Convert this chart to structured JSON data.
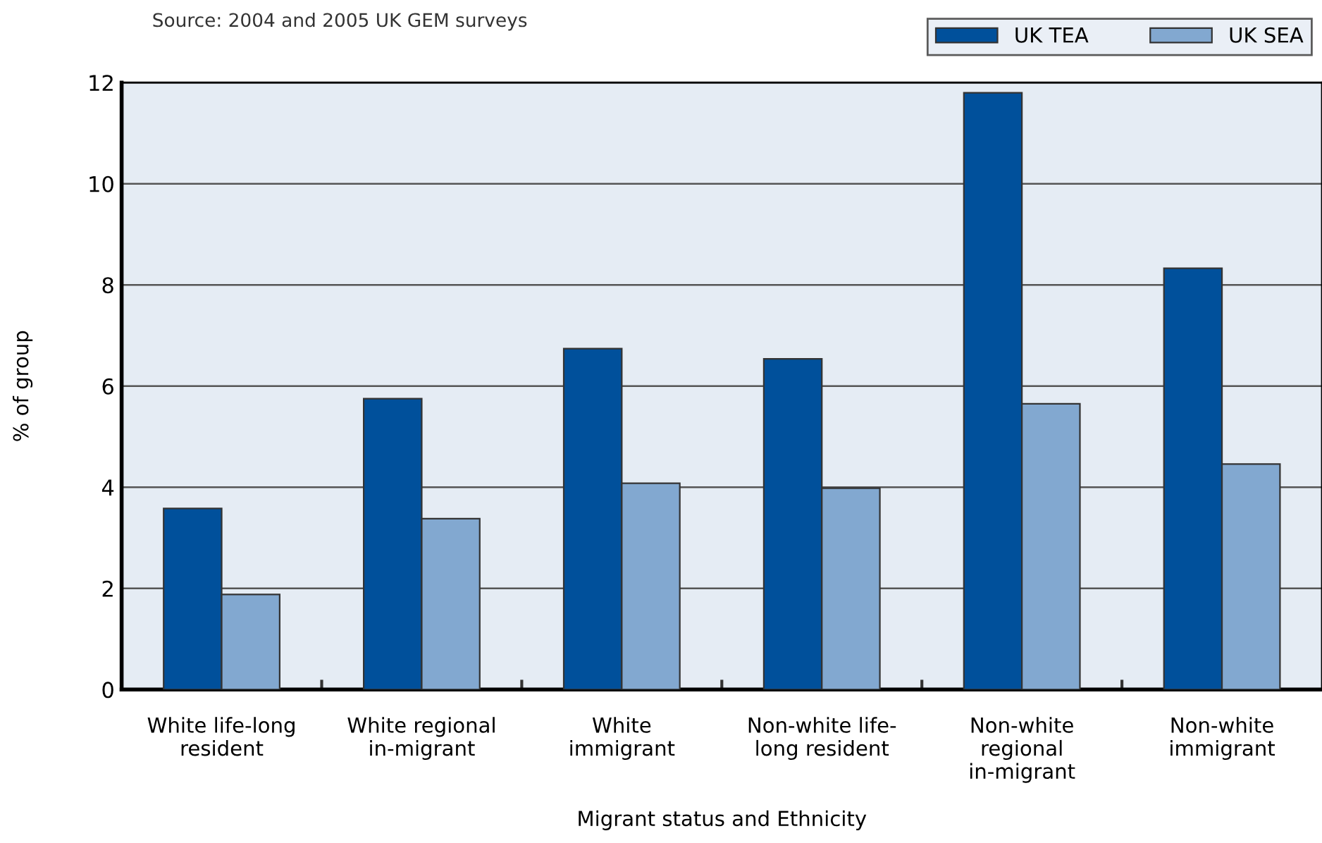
{
  "chart_data": {
    "type": "bar",
    "xlabel": "Migrant status and Ethnicity",
    "ylabel": "% of group",
    "annotations": [
      "Source: 2004 and 2005 UK GEM surveys"
    ],
    "categories": [
      "White life-long\nresident",
      "White regional\nin-migrant",
      "White\nimmigrant",
      "Non-white life-\nlong resident",
      "Non-white\nregional\nin-migrant",
      "Non-white\nimmigrant"
    ],
    "series": [
      {
        "name": "UK TEA",
        "color": "#00509b",
        "values": [
          3.58,
          5.75,
          6.74,
          6.54,
          11.8,
          8.33
        ]
      },
      {
        "name": "UK SEA",
        "color": "#82a8d0",
        "values": [
          1.88,
          3.38,
          4.08,
          3.98,
          5.65,
          4.46
        ]
      }
    ],
    "ylim": [
      0,
      12
    ],
    "yticks": [
      0,
      2,
      4,
      6,
      8,
      10,
      12
    ],
    "grid": "y",
    "legend": "top right"
  }
}
